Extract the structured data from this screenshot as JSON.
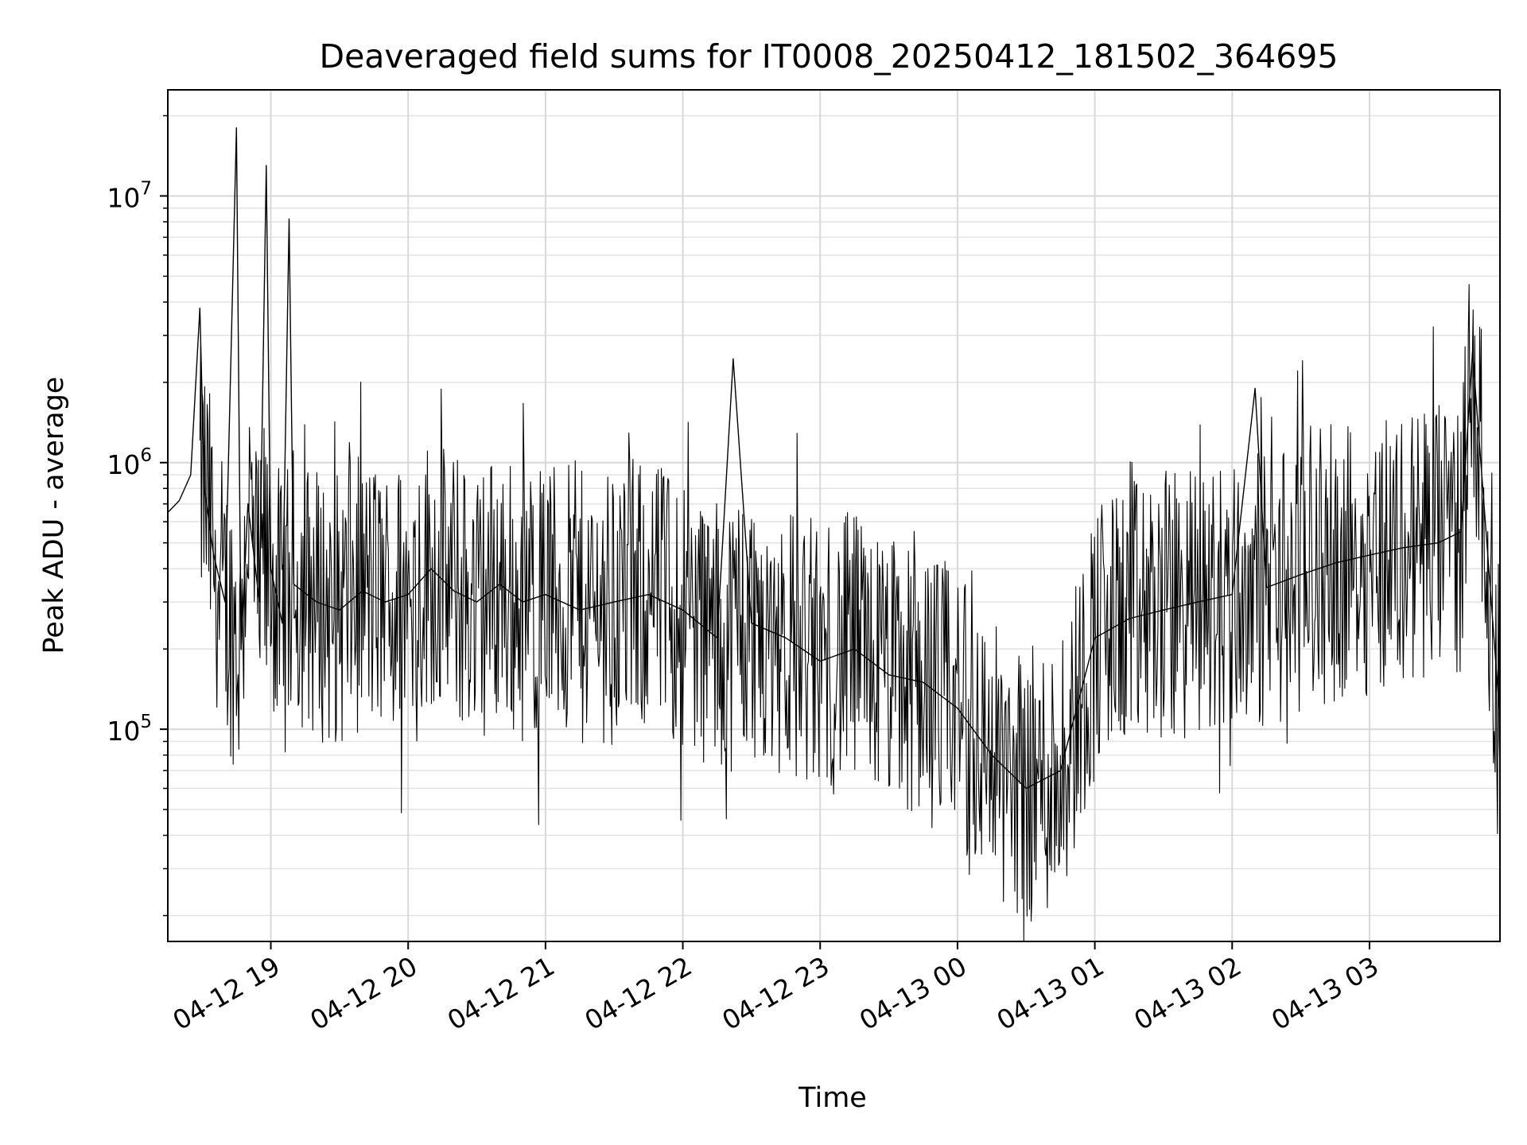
{
  "chart_data": {
    "type": "line",
    "title": "Deaveraged field sums for IT0008_20250412_181502_364695",
    "xlabel": "Time",
    "ylabel": "Peak ADU - average",
    "yscale": "log",
    "ylim": [
      16000,
      25000000
    ],
    "xlim": [
      "04-12 18:15",
      "04-13 03:57"
    ],
    "grid": true,
    "x_ticks": [
      "04-12 19",
      "04-12 20",
      "04-12 21",
      "04-12 22",
      "04-12 23",
      "04-13 00",
      "04-13 01",
      "04-13 02",
      "04-13 03"
    ],
    "y_ticks": [
      {
        "base": "10",
        "exp": "5",
        "value": 100000
      },
      {
        "base": "10",
        "exp": "6",
        "value": 1000000
      },
      {
        "base": "10",
        "exp": "7",
        "value": 10000000
      }
    ],
    "line_color": "#000000",
    "series": [
      {
        "x": [
          "04-12 18:15",
          "04-12 18:20",
          "04-12 18:25",
          "04-12 18:29",
          "04-12 18:31",
          "04-12 18:35",
          "04-12 18:40",
          "04-12 18:45",
          "04-12 18:47",
          "04-12 18:50",
          "04-12 18:55",
          "04-12 18:58",
          "04-12 19:00",
          "04-12 19:05",
          "04-12 19:08",
          "04-12 19:10",
          "04-12 19:20",
          "04-12 19:30",
          "04-12 19:40",
          "04-12 19:50",
          "04-12 20:00",
          "04-12 20:10",
          "04-12 20:20",
          "04-12 20:30",
          "04-12 20:40",
          "04-12 20:50",
          "04-12 21:00",
          "04-12 21:15",
          "04-12 21:30",
          "04-12 21:45",
          "04-12 22:00",
          "04-12 22:15",
          "04-12 22:22",
          "04-12 22:30",
          "04-12 22:45",
          "04-12 23:00",
          "04-12 23:15",
          "04-12 23:30",
          "04-12 23:45",
          "04-13 00:00",
          "04-13 00:15",
          "04-13 00:30",
          "04-13 00:45",
          "04-13 01:00",
          "04-13 01:15",
          "04-13 01:30",
          "04-13 01:45",
          "04-13 02:00",
          "04-13 02:10",
          "04-13 02:15",
          "04-13 02:30",
          "04-13 02:45",
          "04-13 03:00",
          "04-13 03:15",
          "04-13 03:30",
          "04-13 03:40",
          "04-13 03:45",
          "04-13 03:50",
          "04-13 03:57"
        ],
        "values": [
          650000,
          720000,
          900000,
          3800000,
          800000,
          450000,
          300000,
          18000000,
          200000,
          700000,
          300000,
          13000000,
          400000,
          250000,
          8200000,
          350000,
          300000,
          280000,
          330000,
          300000,
          320000,
          400000,
          330000,
          300000,
          350000,
          300000,
          320000,
          280000,
          300000,
          320000,
          280000,
          220000,
          2450000,
          250000,
          220000,
          180000,
          200000,
          160000,
          150000,
          120000,
          80000,
          60000,
          70000,
          220000,
          260000,
          280000,
          300000,
          320000,
          1900000,
          340000,
          380000,
          420000,
          450000,
          480000,
          500000,
          550000,
          2600000,
          700000,
          110000
        ]
      }
    ]
  }
}
